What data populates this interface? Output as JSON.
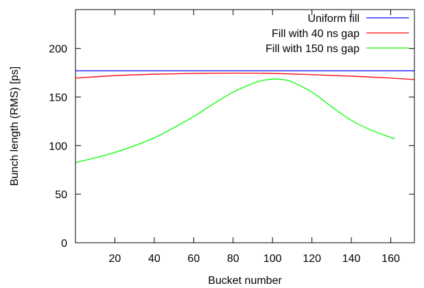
{
  "chart_data": {
    "type": "line",
    "xlabel": "Bucket number",
    "ylabel": "Bunch length (RMS) [ps]",
    "xlim": [
      0,
      172
    ],
    "ylim": [
      0,
      240
    ],
    "xticks": [
      20,
      40,
      60,
      80,
      100,
      120,
      140,
      160
    ],
    "yticks": [
      0,
      50,
      100,
      150,
      200
    ],
    "grid": false,
    "legend_position": "top-right",
    "series": [
      {
        "name": "Uniform fill",
        "color": "#0000ff",
        "x": [
          0,
          172
        ],
        "y": [
          177,
          177
        ]
      },
      {
        "name": "Fill with 40 ns gap",
        "color": "#ff0000",
        "x": [
          0,
          20,
          40,
          60,
          80,
          100,
          120,
          140,
          160,
          172
        ],
        "y": [
          169.5,
          172,
          173.5,
          174.3,
          174.6,
          174.3,
          173,
          171.5,
          169.5,
          168
        ]
      },
      {
        "name": "Fill with 150 ns gap",
        "color": "#00ff00",
        "x": [
          0,
          20,
          40,
          60,
          70,
          80,
          90,
          95,
          100,
          105,
          110,
          120,
          130,
          140,
          150,
          162
        ],
        "y": [
          82.5,
          93,
          108,
          130,
          143,
          155,
          164,
          167,
          168.5,
          168,
          165.5,
          155,
          140,
          126,
          116,
          107
        ]
      }
    ]
  }
}
